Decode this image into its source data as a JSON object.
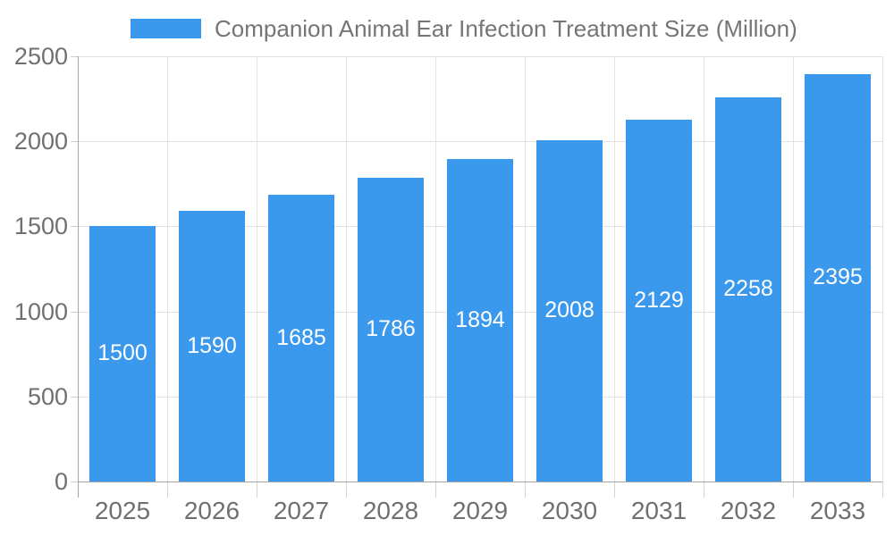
{
  "chart_data": {
    "type": "bar",
    "title": "Companion Animal Ear Infection Treatment Size (Million)",
    "legend": {
      "label": "Companion Animal Ear Infection Treatment Size (Million)",
      "position": "top"
    },
    "categories": [
      "2025",
      "2026",
      "2027",
      "2028",
      "2029",
      "2030",
      "2031",
      "2032",
      "2033"
    ],
    "values": [
      1500,
      1590,
      1685,
      1786,
      1894,
      2008,
      2129,
      2258,
      2395
    ],
    "xlabel": "",
    "ylabel": "",
    "yticks": [
      0,
      500,
      1000,
      1500,
      2000,
      2500
    ],
    "ylim": [
      0,
      2500
    ],
    "grid": true,
    "colors": {
      "bar": "#3B99ED",
      "value_label": "#ffffff",
      "axis_text": "#707070",
      "legend_text": "#757575",
      "gridline": "#e3e3e3",
      "axis_line": "#a6a6a6"
    }
  }
}
